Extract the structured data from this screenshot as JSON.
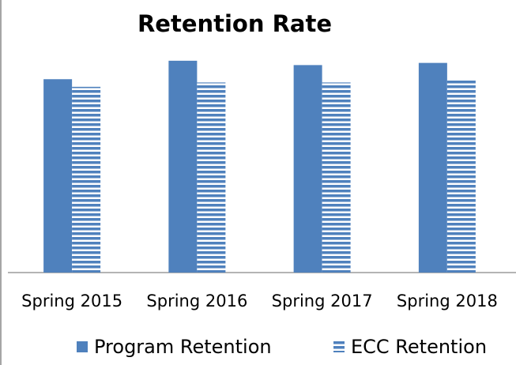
{
  "chart_data": {
    "type": "bar",
    "title": "Retention Rate",
    "categories": [
      "Spring 2015",
      "Spring 2016",
      "Spring 2017",
      "Spring 2018"
    ],
    "series": [
      {
        "name": "Program Retention",
        "color": "#4f81bd",
        "values": [
          89,
          97.5,
          95.5,
          96.5
        ]
      },
      {
        "name": "ECC Retention",
        "color": "#4f81bd",
        "pattern": "horizontal-stripes",
        "values": [
          85.5,
          87.5,
          87.5,
          88.5
        ]
      }
    ],
    "ylim": [
      0,
      100
    ],
    "grid": false,
    "legend": "bottom"
  }
}
